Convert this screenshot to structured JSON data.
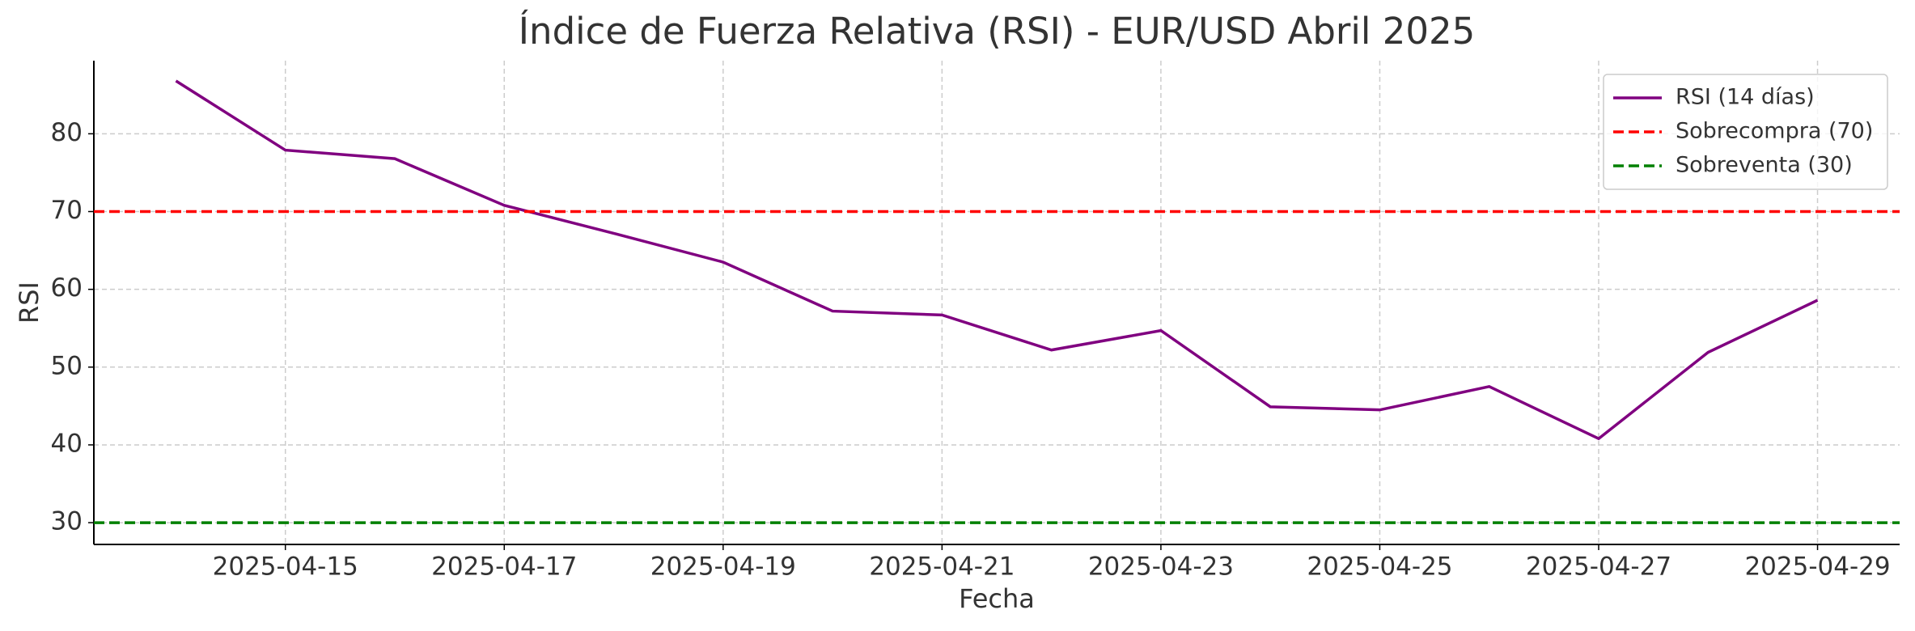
{
  "chart_data": {
    "type": "line",
    "title": "Índice de Fuerza Relativa (RSI) - EUR/USD Abril 2025",
    "x_label": "Fecha",
    "y_label": "RSI",
    "x": [
      "2025-04-14",
      "2025-04-15",
      "2025-04-16",
      "2025-04-17",
      "2025-04-18",
      "2025-04-19",
      "2025-04-20",
      "2025-04-21",
      "2025-04-22",
      "2025-04-23",
      "2025-04-24",
      "2025-04-25",
      "2025-04-26",
      "2025-04-27",
      "2025-04-28",
      "2025-04-29"
    ],
    "series": [
      {
        "name": "RSI (14 días)",
        "color": "#800080",
        "values": [
          86.8,
          77.9,
          76.8,
          70.8,
          67.2,
          63.5,
          57.2,
          56.7,
          52.2,
          54.7,
          44.9,
          44.5,
          47.5,
          40.8,
          51.9,
          58.6
        ]
      }
    ],
    "hlines": [
      {
        "name": "Sobrecompra (70)",
        "value": 70,
        "color": "#ff0000",
        "style": "dashed"
      },
      {
        "name": "Sobreventa (30)",
        "value": 30,
        "color": "#008000",
        "style": "dashed"
      }
    ],
    "xlim": [
      "2025-04-13T06:00",
      "2025-04-29T18:00"
    ],
    "xticks": [
      "2025-04-15",
      "2025-04-17",
      "2025-04-19",
      "2025-04-21",
      "2025-04-23",
      "2025-04-25",
      "2025-04-27",
      "2025-04-29"
    ],
    "ylim": [
      27.2,
      89.4
    ],
    "yticks": [
      30,
      40,
      50,
      60,
      70,
      80
    ],
    "grid": true,
    "legend": "upper right"
  }
}
